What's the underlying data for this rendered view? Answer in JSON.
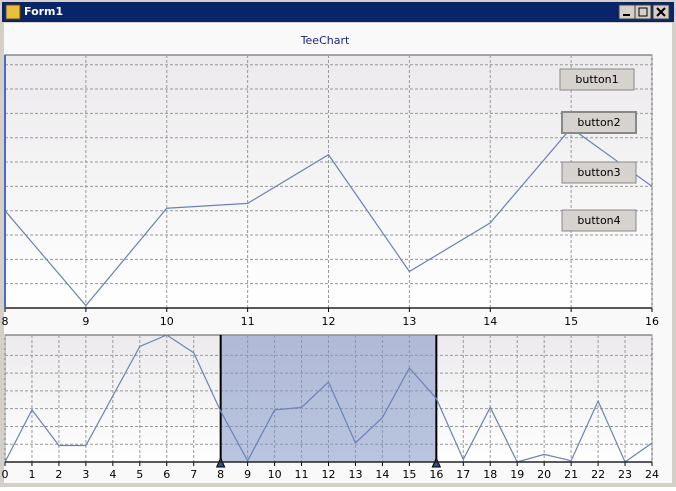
{
  "window": {
    "title": "Form1"
  },
  "buttons": [
    "button1",
    "button2",
    "button3",
    "button4"
  ],
  "chart_data": [
    {
      "type": "line",
      "title": "TeeChart",
      "x": [
        8,
        9,
        10,
        11,
        12,
        13,
        14,
        15,
        16
      ],
      "series": [
        {
          "color": "#6b82b8",
          "values": [
            40,
            1,
            41,
            43,
            63,
            15,
            35,
            74,
            50
          ]
        }
      ],
      "xlim": [
        8,
        16
      ],
      "xticks": [
        8,
        9,
        10,
        11,
        12,
        13,
        14,
        15,
        16
      ],
      "ylim": [
        0,
        104
      ],
      "yticks": [
        0,
        10,
        20,
        30,
        40,
        50,
        60,
        70,
        80,
        90,
        100
      ],
      "y_labels": false,
      "grid": true
    },
    {
      "type": "line",
      "x": [
        0,
        1,
        2,
        3,
        4,
        5,
        6,
        7,
        8,
        9,
        10,
        11,
        12,
        13,
        14,
        15,
        16,
        17,
        18,
        19,
        20,
        21,
        22,
        23,
        24
      ],
      "series": [
        {
          "color": "#6b82b8",
          "values": [
            0,
            41,
            13,
            13,
            52,
            91,
            100,
            86,
            40,
            1,
            41,
            43,
            63,
            15,
            35,
            74,
            50,
            2,
            43,
            0,
            6,
            1,
            48,
            0,
            15
          ]
        }
      ],
      "xlim": [
        0,
        24
      ],
      "xticks": [
        0,
        1,
        2,
        3,
        4,
        5,
        6,
        7,
        8,
        9,
        10,
        11,
        12,
        13,
        14,
        15,
        16,
        17,
        18,
        19,
        20,
        21,
        22,
        23,
        24
      ],
      "ylim": [
        0,
        100
      ],
      "yticks": [
        0,
        14,
        28,
        42,
        56,
        70,
        84
      ],
      "y_labels": false,
      "grid": true,
      "selection": [
        8,
        16
      ],
      "selection_color": "#7f93c4"
    }
  ]
}
